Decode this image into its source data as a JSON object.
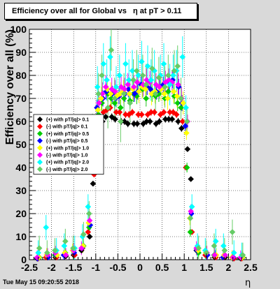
{
  "title": "Efficiency over all for Global vs   η at pT > 0.11",
  "timestamp": "Tue May 15 09:20:55 2018",
  "chart_data": {
    "type": "scatter",
    "title": "Efficiency over all for Global vs   η at pT > 0.11",
    "xlabel": "η",
    "ylabel": "Efficiency over all (%)",
    "xlim": [
      -2.5,
      2.5
    ],
    "ylim": [
      0,
      100
    ],
    "x_ticks": [
      "-2.5",
      "-2",
      "-1.5",
      "-1",
      "-0.5",
      "0",
      "0.5",
      "1",
      "1.5",
      "2",
      "2.5"
    ],
    "y_ticks": [
      "0",
      "10",
      "20",
      "30",
      "40",
      "50",
      "60",
      "70",
      "80",
      "90",
      "100"
    ],
    "grid": true,
    "legend_position": "left-middle",
    "series": [
      {
        "name": "(+) with pT/|q|> 0.1",
        "color": "#000000",
        "x": [
          -2.3,
          -2.1,
          -1.9,
          -1.7,
          -1.5,
          -1.3,
          -1.15,
          -1.05,
          -0.95,
          -0.85,
          -0.75,
          -0.65,
          -0.55,
          -0.45,
          -0.35,
          -0.25,
          -0.15,
          -0.05,
          0.05,
          0.15,
          0.25,
          0.35,
          0.45,
          0.55,
          0.65,
          0.75,
          0.85,
          0.95,
          1.05,
          1.15,
          1.3,
          1.5,
          1.7,
          1.9,
          2.1,
          2.3
        ],
        "y": [
          0.5,
          1,
          1,
          1.5,
          2,
          4,
          10,
          33,
          52,
          60,
          62,
          62,
          61,
          60,
          60,
          59,
          59,
          59,
          59,
          60,
          60,
          59,
          60,
          61,
          61,
          61,
          60,
          57,
          48,
          35,
          4,
          2,
          1,
          1,
          0.5,
          0.5
        ]
      },
      {
        "name": "(-) with pT/|q|> 0.1",
        "color": "#ff0000",
        "x": [
          -2.3,
          -2.1,
          -1.9,
          -1.7,
          -1.5,
          -1.3,
          -1.15,
          -1.05,
          -0.95,
          -0.85,
          -0.75,
          -0.65,
          -0.55,
          -0.45,
          -0.35,
          -0.25,
          -0.15,
          -0.05,
          0.05,
          0.15,
          0.25,
          0.35,
          0.45,
          0.55,
          0.65,
          0.75,
          0.85,
          0.95,
          1.05,
          1.15,
          1.3,
          1.5,
          1.7,
          1.9,
          2.1,
          2.3
        ],
        "y": [
          0.5,
          1,
          1,
          2,
          2,
          5,
          12,
          37,
          58,
          64,
          65,
          66,
          64,
          64,
          63,
          63,
          64,
          63,
          63,
          63,
          64,
          64,
          63,
          64,
          64,
          64,
          63,
          60,
          40,
          12,
          4,
          2,
          1,
          1,
          0.5,
          0.5
        ]
      },
      {
        "name": "(+) with pT/|q|> 0.5",
        "color": "#00cc00",
        "x": [
          -2.3,
          -2.1,
          -1.9,
          -1.7,
          -1.5,
          -1.3,
          -1.15,
          -1.05,
          -0.95,
          -0.85,
          -0.75,
          -0.65,
          -0.55,
          -0.45,
          -0.35,
          -0.25,
          -0.15,
          -0.05,
          0.05,
          0.15,
          0.25,
          0.35,
          0.45,
          0.55,
          0.65,
          0.75,
          0.85,
          0.95,
          1.05,
          1.15,
          1.3,
          1.5,
          1.7,
          1.9,
          2.1,
          2.3
        ],
        "y": [
          1,
          2,
          2,
          3,
          4,
          6,
          14,
          47,
          63,
          68,
          72,
          70,
          68,
          66,
          70,
          69,
          72,
          71,
          74,
          70,
          72,
          71,
          72,
          70,
          73,
          71,
          68,
          66,
          40,
          12,
          3,
          3,
          2,
          2,
          1,
          1
        ]
      },
      {
        "name": "(-) with pT/|q|> 0.5",
        "color": "#0000ff",
        "x": [
          -2.3,
          -2.1,
          -1.9,
          -1.7,
          -1.5,
          -1.3,
          -1.15,
          -1.05,
          -0.95,
          -0.85,
          -0.75,
          -0.65,
          -0.55,
          -0.45,
          -0.35,
          -0.25,
          -0.15,
          -0.05,
          0.05,
          0.15,
          0.25,
          0.35,
          0.45,
          0.55,
          0.65,
          0.75,
          0.85,
          0.95,
          1.05,
          1.15,
          1.3,
          1.5,
          1.7,
          1.9,
          2.1,
          2.3
        ],
        "y": [
          0.5,
          1,
          2,
          2,
          3,
          5,
          15,
          50,
          66,
          70,
          73,
          72,
          70,
          71,
          72,
          74,
          72,
          73,
          76,
          75,
          74,
          73,
          75,
          76,
          77,
          78,
          75,
          68,
          58,
          20,
          4,
          2,
          2,
          1,
          1,
          1
        ]
      },
      {
        "name": "(+) with pT/|q|> 1.0",
        "color": "#ffff00",
        "x": [
          -2.3,
          -2.1,
          -1.9,
          -1.7,
          -1.5,
          -1.3,
          -1.15,
          -1.05,
          -0.95,
          -0.85,
          -0.75,
          -0.65,
          -0.55,
          -0.45,
          -0.35,
          -0.25,
          -0.15,
          -0.05,
          0.05,
          0.15,
          0.25,
          0.35,
          0.45,
          0.55,
          0.65,
          0.75,
          0.85,
          0.95,
          1.05,
          1.15,
          1.3,
          1.5,
          1.7,
          1.9,
          2.1,
          2.3
        ],
        "y": [
          1,
          2,
          2,
          3,
          4,
          6,
          16,
          50,
          65,
          70,
          74,
          72,
          71,
          72,
          73,
          72,
          74,
          73,
          75,
          74,
          72,
          73,
          74,
          72,
          70,
          73,
          71,
          68,
          55,
          18,
          4,
          3,
          2,
          2,
          1,
          1
        ]
      },
      {
        "name": "(-) with pT/|q|> 1.0",
        "color": "#ff00ff",
        "x": [
          -2.3,
          -2.1,
          -1.9,
          -1.7,
          -1.5,
          -1.3,
          -1.15,
          -1.05,
          -0.95,
          -0.85,
          -0.75,
          -0.65,
          -0.55,
          -0.45,
          -0.35,
          -0.25,
          -0.15,
          -0.05,
          0.05,
          0.15,
          0.25,
          0.35,
          0.45,
          0.55,
          0.65,
          0.75,
          0.85,
          0.95,
          1.05,
          1.15,
          1.3,
          1.5,
          1.7,
          1.9,
          2.1,
          2.3
        ],
        "y": [
          1,
          2,
          3,
          2,
          4,
          5,
          17,
          54,
          68,
          72,
          75,
          74,
          73,
          75,
          74,
          76,
          75,
          77,
          76,
          78,
          77,
          76,
          75,
          77,
          78,
          77,
          76,
          70,
          60,
          21,
          5,
          3,
          2,
          2,
          1,
          1
        ]
      },
      {
        "name": "(+) with pT/|q|> 2.0",
        "color": "#00ffff",
        "x": [
          -2.3,
          -2.1,
          -1.9,
          -1.7,
          -1.5,
          -1.3,
          -1.15,
          -1.05,
          -0.95,
          -0.85,
          -0.75,
          -0.65,
          -0.55,
          -0.45,
          -0.35,
          -0.25,
          -0.15,
          -0.05,
          0.05,
          0.15,
          0.25,
          0.35,
          0.45,
          0.55,
          0.65,
          0.75,
          0.85,
          0.95,
          1.05,
          1.15,
          1.3,
          1.5,
          1.7,
          1.9,
          2.1,
          2.3
        ],
        "y": [
          3,
          14,
          4,
          6,
          5,
          10,
          23,
          56,
          75,
          85,
          78,
          88,
          75,
          80,
          85,
          78,
          82,
          80,
          86,
          84,
          78,
          82,
          80,
          85,
          76,
          80,
          82,
          88,
          66,
          23,
          6,
          4,
          8,
          6,
          3,
          2
        ]
      },
      {
        "name": "(-) with pT/|q|> 2.0",
        "color": "#66cc66",
        "x": [
          -2.3,
          -2.1,
          -1.9,
          -1.7,
          -1.5,
          -1.3,
          -1.15,
          -1.05,
          -0.95,
          -0.85,
          -0.75,
          -0.65,
          -0.55,
          -0.45,
          -0.35,
          -0.25,
          -0.15,
          -0.05,
          0.05,
          0.15,
          0.25,
          0.35,
          0.45,
          0.55,
          0.65,
          0.75,
          0.85,
          0.95,
          1.05,
          1.15,
          1.3,
          1.5,
          1.7,
          1.9,
          2.1,
          2.3
        ],
        "y": [
          5,
          3,
          4,
          8,
          5,
          11,
          20,
          58,
          72,
          80,
          66,
          91,
          70,
          60,
          72,
          68,
          78,
          82,
          80,
          76,
          83,
          72,
          79,
          75,
          80,
          82,
          84,
          70,
          60,
          18,
          5,
          3,
          6,
          4,
          12,
          2
        ]
      }
    ]
  }
}
